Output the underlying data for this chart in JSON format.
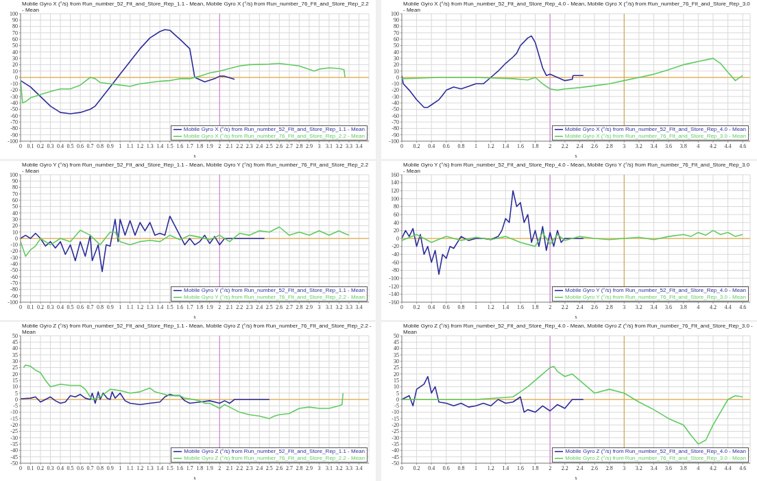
{
  "chart_data": [
    {
      "type": "line",
      "title": "Mobile Gyro X (°/s) from Run_number_52_Fit_and_Store_Rep_1.1 - Mean, Mobile Gyro X (°/s) from Run_number_76_Fit_and_Store_Rep_2.2 - Mean",
      "xlabel": "s",
      "xlim": [
        0,
        3.5
      ],
      "xticks": [
        0,
        0.1,
        0.2,
        0.3,
        0.4,
        0.5,
        0.6,
        0.7,
        0.8,
        0.9,
        1,
        1.1,
        1.2,
        1.3,
        1.4,
        1.5,
        1.6,
        1.7,
        1.8,
        1.9,
        2,
        2.1,
        2.2,
        2.3,
        2.4,
        2.5,
        2.6,
        2.7,
        2.8,
        2.9,
        3,
        3.1,
        3.2,
        3.3,
        3.4
      ],
      "ylim": [
        -100,
        100
      ],
      "yticks": [
        -100,
        -90,
        -80,
        -70,
        -60,
        -50,
        -40,
        -30,
        -20,
        -10,
        0,
        10,
        20,
        30,
        40,
        50,
        60,
        70,
        80,
        90,
        100
      ],
      "grid": true,
      "legend": "bottom right",
      "ref_lines": [
        {
          "axis": "x",
          "value": 2,
          "color": "#d070d0"
        },
        {
          "axis": "y",
          "value": 0,
          "color": "#e8a020"
        }
      ],
      "series": [
        {
          "name": "Mobile Gyro X (°/s) from Run_number_52_Fit_and_Store_Rep_1.1 - Mean",
          "color": "#2a2a9a",
          "x": [
            0,
            0.1,
            0.2,
            0.3,
            0.4,
            0.5,
            0.6,
            0.7,
            0.75,
            0.8,
            0.9,
            1,
            1.1,
            1.2,
            1.3,
            1.4,
            1.45,
            1.5,
            1.6,
            1.7,
            1.75,
            1.85,
            1.95,
            2,
            2.05,
            2.15
          ],
          "values": [
            -5,
            -15,
            -30,
            -45,
            -55,
            -57,
            -55,
            -50,
            -45,
            -35,
            -15,
            5,
            25,
            45,
            62,
            72,
            75,
            74,
            60,
            45,
            0,
            -7,
            -2,
            2,
            2,
            -3
          ]
        },
        {
          "name": "Mobile Gyro X (°/s) from Run_number_76_Fit_and_Store_Rep_2.2 - Mean",
          "color": "#5ecb5e",
          "x": [
            0,
            0.02,
            0.05,
            0.1,
            0.2,
            0.3,
            0.4,
            0.5,
            0.6,
            0.7,
            0.75,
            0.8,
            0.9,
            1,
            1.1,
            1.2,
            1.3,
            1.4,
            1.5,
            1.6,
            1.7,
            1.8,
            1.9,
            2,
            2.2,
            2.3,
            2.5,
            2.6,
            2.8,
            2.95,
            3,
            3.1,
            3.2,
            3.25,
            3.26
          ],
          "values": [
            -5,
            -40,
            -38,
            -32,
            -27,
            -22,
            -18,
            -18,
            -12,
            0,
            -2,
            -8,
            -10,
            -12,
            -14,
            -10,
            -8,
            -6,
            -5,
            -2,
            -2,
            2,
            7,
            10,
            18,
            20,
            21,
            22,
            18,
            10,
            13,
            15,
            14,
            12,
            0
          ]
        }
      ]
    },
    {
      "type": "line",
      "title": "Mobile Gyro X (°/s) from Run_number_52_Fit_and_Store_Rep_4.0 - Mean, Mobile Gyro X (°/s) from Run_number_76_Fit_and_Store_Rep_3.0 - Mean",
      "xlabel": "s",
      "xlim": [
        0,
        4.7
      ],
      "xticks": [
        0,
        0.2,
        0.4,
        0.6,
        0.8,
        1,
        1.2,
        1.4,
        1.6,
        1.8,
        2,
        2.2,
        2.4,
        2.6,
        2.8,
        3,
        3.2,
        3.4,
        3.6,
        3.8,
        4,
        4.2,
        4.4,
        4.6
      ],
      "ylim": [
        -100,
        100
      ],
      "yticks": [
        -100,
        -90,
        -80,
        -70,
        -60,
        -50,
        -40,
        -30,
        -20,
        -10,
        0,
        10,
        20,
        30,
        40,
        50,
        60,
        70,
        80,
        90,
        100
      ],
      "grid": true,
      "legend": "bottom right",
      "ref_lines": [
        {
          "axis": "x",
          "value": 2,
          "color": "#d070d0"
        },
        {
          "axis": "x",
          "value": 3,
          "color": "#d09a30"
        },
        {
          "axis": "y",
          "value": 0,
          "color": "#e8a020"
        }
      ],
      "series": [
        {
          "name": "Mobile Gyro X (°/s) from Run_number_52_Fit_and_Store_Rep_4.0 - Mean",
          "color": "#2a2a9a",
          "x": [
            0,
            0.02,
            0.1,
            0.2,
            0.3,
            0.35,
            0.4,
            0.5,
            0.55,
            0.6,
            0.7,
            0.8,
            0.9,
            1,
            1.1,
            1.2,
            1.3,
            1.4,
            1.5,
            1.55,
            1.6,
            1.7,
            1.75,
            1.8,
            1.85,
            1.9,
            1.95,
            2,
            2.1,
            2.2,
            2.3,
            2.31,
            2.45
          ],
          "values": [
            3,
            -10,
            -20,
            -35,
            -47,
            -47,
            -43,
            -35,
            -28,
            -20,
            -15,
            -18,
            -14,
            -10,
            -10,
            0,
            10,
            22,
            32,
            38,
            50,
            62,
            65,
            55,
            35,
            15,
            3,
            5,
            0,
            -5,
            -3,
            3,
            3
          ]
        },
        {
          "name": "Mobile Gyro X (°/s) from Run_number_76_Fit_and_Store_Rep_3.0 - Mean",
          "color": "#5ecb5e",
          "x": [
            0,
            0.5,
            1,
            1.5,
            1.7,
            1.8,
            1.9,
            2,
            2.1,
            2.2,
            2.4,
            2.6,
            2.8,
            3,
            3.2,
            3.4,
            3.6,
            3.8,
            4,
            4.2,
            4.3,
            4.4,
            4.5,
            4.6
          ],
          "values": [
            -2,
            0,
            0,
            -2,
            -4,
            0,
            -10,
            -18,
            -20,
            -18,
            -16,
            -13,
            -10,
            -5,
            0,
            5,
            12,
            20,
            25,
            30,
            22,
            8,
            -5,
            3
          ]
        }
      ]
    },
    {
      "type": "line",
      "title": "Mobile Gyro Y (°/s) from Run_number_52_Fit_and_Store_Rep_1.1 - Mean, Mobile Gyro Y (°/s) from Run_number_76_Fit_and_Store_Rep_2.2 - Mean",
      "xlabel": "s",
      "xlim": [
        0,
        3.5
      ],
      "xticks": [
        0,
        0.1,
        0.2,
        0.3,
        0.4,
        0.5,
        0.6,
        0.7,
        0.8,
        0.9,
        1,
        1.1,
        1.2,
        1.3,
        1.4,
        1.5,
        1.6,
        1.7,
        1.8,
        1.9,
        2,
        2.1,
        2.2,
        2.3,
        2.4,
        2.5,
        2.6,
        2.7,
        2.8,
        2.9,
        3,
        3.1,
        3.2,
        3.3,
        3.4
      ],
      "ylim": [
        -100,
        100
      ],
      "yticks": [
        -100,
        -90,
        -80,
        -70,
        -60,
        -50,
        -40,
        -30,
        -20,
        -10,
        0,
        10,
        20,
        30,
        40,
        50,
        60,
        70,
        80,
        90,
        100
      ],
      "grid": true,
      "legend": "bottom right",
      "ref_lines": [
        {
          "axis": "x",
          "value": 2,
          "color": "#d070d0"
        },
        {
          "axis": "y",
          "value": 0,
          "color": "#e8a020"
        }
      ],
      "series": [
        {
          "name": "Mobile Gyro Y (°/s) from Run_number_52_Fit_and_Store_Rep_1.1 - Mean",
          "color": "#2a2a9a",
          "x": [
            0,
            0.05,
            0.1,
            0.15,
            0.2,
            0.25,
            0.3,
            0.35,
            0.4,
            0.45,
            0.5,
            0.55,
            0.6,
            0.65,
            0.7,
            0.72,
            0.78,
            0.82,
            0.86,
            0.9,
            0.95,
            0.98,
            1,
            1.05,
            1.1,
            1.15,
            1.2,
            1.25,
            1.3,
            1.35,
            1.4,
            1.45,
            1.5,
            1.55,
            1.6,
            1.65,
            1.7,
            1.75,
            1.8,
            1.85,
            1.9,
            1.95,
            2,
            2.05,
            2.1,
            2.45
          ],
          "values": [
            0,
            5,
            0,
            8,
            0,
            -12,
            -5,
            -15,
            -5,
            -25,
            -10,
            -35,
            -5,
            -28,
            5,
            -35,
            -10,
            -52,
            -10,
            -12,
            30,
            -5,
            30,
            5,
            28,
            5,
            25,
            12,
            25,
            5,
            8,
            5,
            35,
            20,
            5,
            -10,
            0,
            -10,
            -5,
            5,
            -8,
            3,
            -10,
            0,
            0,
            0
          ]
        },
        {
          "name": "Mobile Gyro Y (°/s) from Run_number_76_Fit_and_Store_Rep_2.2 - Mean",
          "color": "#5ecb5e",
          "x": [
            0,
            0.05,
            0.1,
            0.15,
            0.2,
            0.3,
            0.4,
            0.5,
            0.6,
            0.7,
            0.8,
            0.9,
            0.95,
            1,
            1.1,
            1.2,
            1.3,
            1.4,
            1.5,
            1.6,
            1.7,
            1.8,
            1.9,
            2,
            2.1,
            2.2,
            2.3,
            2.4,
            2.5,
            2.6,
            2.7,
            2.8,
            2.9,
            3,
            3.1,
            3.2,
            3.25,
            3.3
          ],
          "values": [
            -5,
            -28,
            -18,
            -12,
            0,
            -10,
            0,
            -5,
            13,
            5,
            -10,
            10,
            10,
            -5,
            -10,
            -5,
            -3,
            -5,
            5,
            -2,
            5,
            2,
            -2,
            5,
            -5,
            8,
            5,
            12,
            10,
            18,
            5,
            10,
            5,
            12,
            5,
            12,
            8,
            5
          ]
        }
      ]
    },
    {
      "type": "line",
      "title": "Mobile Gyro Y (°/s) from Run_number_52_Fit_and_Store_Rep_4.0 - Mean, Mobile Gyro Y (°/s) from Run_number_76_Fit_and_Store_Rep_3.0 - Mean",
      "xlabel": "s",
      "xlim": [
        0,
        4.7
      ],
      "xticks": [
        0,
        0.2,
        0.4,
        0.6,
        0.8,
        1,
        1.2,
        1.4,
        1.6,
        1.8,
        2,
        2.2,
        2.4,
        2.6,
        2.8,
        3,
        3.2,
        3.4,
        3.6,
        3.8,
        4,
        4.2,
        4.4,
        4.6
      ],
      "ylim": [
        -160,
        160
      ],
      "yticks": [
        -160,
        -140,
        -120,
        -100,
        -80,
        -60,
        -40,
        -20,
        0,
        20,
        40,
        60,
        80,
        100,
        120,
        140,
        160
      ],
      "grid": true,
      "legend": "bottom right",
      "ref_lines": [
        {
          "axis": "x",
          "value": 2,
          "color": "#d070d0"
        },
        {
          "axis": "x",
          "value": 3,
          "color": "#d09a30"
        },
        {
          "axis": "y",
          "value": 0,
          "color": "#e8a020"
        }
      ],
      "series": [
        {
          "name": "Mobile Gyro Y (°/s) from Run_number_52_Fit_and_Store_Rep_4.0 - Mean",
          "color": "#2a2a9a",
          "x": [
            0,
            0.05,
            0.1,
            0.15,
            0.2,
            0.25,
            0.3,
            0.35,
            0.4,
            0.45,
            0.5,
            0.55,
            0.6,
            0.65,
            0.7,
            0.8,
            0.9,
            1,
            1.1,
            1.2,
            1.3,
            1.35,
            1.4,
            1.45,
            1.5,
            1.55,
            1.6,
            1.65,
            1.7,
            1.75,
            1.8,
            1.85,
            1.9,
            1.95,
            2,
            2.05,
            2.1,
            2.15,
            2.2,
            2.45
          ],
          "values": [
            0,
            20,
            5,
            25,
            -20,
            10,
            -40,
            -20,
            -60,
            -30,
            -90,
            -40,
            -50,
            -20,
            -25,
            5,
            -5,
            0,
            0,
            -3,
            5,
            20,
            50,
            40,
            120,
            80,
            90,
            40,
            60,
            -10,
            20,
            -20,
            30,
            -30,
            15,
            -20,
            20,
            -10,
            0,
            0
          ]
        },
        {
          "name": "Mobile Gyro Y (°/s) from Run_number_76_Fit_and_Store_Rep_3.0 - Mean",
          "color": "#5ecb5e",
          "x": [
            0,
            0.2,
            0.4,
            0.6,
            0.8,
            1,
            1.2,
            1.4,
            1.6,
            1.8,
            1.9,
            2,
            2.1,
            2.2,
            2.4,
            2.6,
            2.8,
            3,
            3.2,
            3.4,
            3.6,
            3.8,
            3.9,
            4,
            4.1,
            4.2,
            4.3,
            4.4,
            4.5,
            4.6
          ],
          "values": [
            -5,
            10,
            -10,
            5,
            -5,
            3,
            -3,
            5,
            -10,
            -20,
            15,
            -15,
            10,
            -5,
            5,
            0,
            -3,
            0,
            3,
            -3,
            5,
            10,
            5,
            15,
            8,
            20,
            10,
            15,
            5,
            10
          ]
        }
      ]
    },
    {
      "type": "line",
      "title": "Mobile Gyro Z (°/s) from Run_number_52_Fit_and_Store_Rep_1.1 - Mean, Mobile Gyro Z (°/s) from Run_number_76_Fit_and_Store_Rep_2.2 - Mean",
      "xlabel": "s",
      "xlim": [
        0,
        3.5
      ],
      "xticks": [
        0,
        0.1,
        0.2,
        0.3,
        0.4,
        0.5,
        0.6,
        0.7,
        0.8,
        0.9,
        1,
        1.1,
        1.2,
        1.3,
        1.4,
        1.5,
        1.6,
        1.7,
        1.8,
        1.9,
        2,
        2.1,
        2.2,
        2.3,
        2.4,
        2.5,
        2.6,
        2.7,
        2.8,
        2.9,
        3,
        3.1,
        3.2,
        3.3,
        3.4
      ],
      "ylim": [
        -50,
        50
      ],
      "yticks": [
        -50,
        -45,
        -40,
        -35,
        -30,
        -25,
        -20,
        -15,
        -10,
        -5,
        0,
        5,
        10,
        15,
        20,
        25,
        30,
        35,
        40,
        45,
        50
      ],
      "grid": true,
      "legend": "bottom right",
      "ref_lines": [
        {
          "axis": "x",
          "value": 2,
          "color": "#d070d0"
        },
        {
          "axis": "y",
          "value": 0,
          "color": "#e8a020"
        }
      ],
      "series": [
        {
          "name": "Mobile Gyro Z (°/s) from Run_number_52_Fit_and_Store_Rep_1.1 - Mean",
          "color": "#2a2a9a",
          "x": [
            0,
            0.1,
            0.15,
            0.2,
            0.25,
            0.3,
            0.35,
            0.4,
            0.45,
            0.5,
            0.55,
            0.6,
            0.65,
            0.7,
            0.72,
            0.75,
            0.78,
            0.8,
            0.83,
            0.87,
            0.9,
            0.92,
            0.95,
            1,
            1.05,
            1.1,
            1.2,
            1.3,
            1.4,
            1.45,
            1.5,
            1.55,
            1.6,
            1.65,
            1.7,
            1.8,
            1.9,
            2,
            2.05,
            2.1,
            2.15,
            2.5
          ],
          "values": [
            0.5,
            1,
            2,
            -2,
            0,
            2,
            -1,
            -3,
            -2,
            3,
            2,
            4,
            1,
            0,
            5,
            -3,
            6,
            0,
            5,
            1,
            0,
            6,
            1,
            5,
            -1,
            -3,
            -4,
            -3,
            -2,
            2,
            4,
            3,
            3,
            -1,
            -3,
            -2,
            -1,
            -3,
            -1,
            -3,
            0,
            0
          ]
        },
        {
          "name": "Mobile Gyro Z (°/s) from Run_number_76_Fit_and_Store_Rep_2.2 - Mean",
          "color": "#5ecb5e",
          "x": [
            0.03,
            0.05,
            0.1,
            0.15,
            0.2,
            0.25,
            0.3,
            0.4,
            0.5,
            0.6,
            0.65,
            0.7,
            0.72,
            0.8,
            0.9,
            1,
            1.1,
            1.2,
            1.3,
            1.35,
            1.4,
            1.5,
            1.6,
            1.65,
            1.7,
            1.8,
            1.85,
            1.9,
            2,
            2.05,
            2.1,
            2.2,
            2.3,
            2.4,
            2.5,
            2.55,
            2.6,
            2.7,
            2.8,
            2.9,
            3,
            3.1,
            3.2,
            3.23,
            3.24
          ],
          "values": [
            25,
            27,
            26,
            23,
            21,
            15,
            10,
            12,
            11,
            11,
            8,
            2,
            0,
            2,
            8,
            7,
            5,
            6,
            9,
            6,
            5,
            3,
            3,
            1,
            0.5,
            -1,
            -3,
            -3,
            -7,
            -4,
            -6,
            -10,
            -12,
            -13,
            -15,
            -13,
            -12,
            -11,
            -7,
            -6,
            -7,
            -7,
            -5,
            -4,
            5
          ]
        }
      ]
    },
    {
      "type": "line",
      "title": "Mobile Gyro Z (°/s) from Run_number_52_Fit_and_Store_Rep_4.0 - Mean, Mobile Gyro Z (°/s) from Run_number_76_Fit_and_Store_Rep_3.0 - Mean",
      "xlabel": "s",
      "xlim": [
        0,
        4.7
      ],
      "xticks": [
        0,
        0.2,
        0.4,
        0.6,
        0.8,
        1,
        1.2,
        1.4,
        1.6,
        1.8,
        2,
        2.2,
        2.4,
        2.6,
        2.8,
        3,
        3.2,
        3.4,
        3.6,
        3.8,
        4,
        4.2,
        4.4,
        4.6
      ],
      "ylim": [
        -50,
        50
      ],
      "yticks": [
        -50,
        -45,
        -40,
        -35,
        -30,
        -25,
        -20,
        -15,
        -10,
        -5,
        0,
        5,
        10,
        15,
        20,
        25,
        30,
        35,
        40,
        45,
        50
      ],
      "grid": true,
      "legend": "bottom right",
      "ref_lines": [
        {
          "axis": "x",
          "value": 2,
          "color": "#d070d0"
        },
        {
          "axis": "x",
          "value": 3,
          "color": "#d09a30"
        },
        {
          "axis": "y",
          "value": 0,
          "color": "#e8a020"
        }
      ],
      "series": [
        {
          "name": "Mobile Gyro Z (°/s) from Run_number_52_Fit_and_Store_Rep_4.0 - Mean",
          "color": "#2a2a9a",
          "x": [
            0,
            0.1,
            0.15,
            0.2,
            0.3,
            0.35,
            0.4,
            0.45,
            0.5,
            0.6,
            0.7,
            0.8,
            0.9,
            1,
            1.1,
            1.2,
            1.3,
            1.4,
            1.5,
            1.6,
            1.65,
            1.7,
            1.8,
            1.9,
            2,
            2.1,
            2.2,
            2.3,
            2.45
          ],
          "values": [
            0,
            3,
            -5,
            8,
            12,
            18,
            5,
            10,
            -2,
            -3,
            -5,
            -3,
            -6,
            -5,
            -3,
            -5,
            0,
            -3,
            -2,
            2,
            -10,
            -8,
            -10,
            -5,
            -9,
            -4,
            -7,
            0,
            0
          ]
        },
        {
          "name": "Mobile Gyro Z (°/s) from Run_number_76_Fit_and_Store_Rep_3.0 - Mean",
          "color": "#5ecb5e",
          "x": [
            0,
            0.5,
            1,
            1.5,
            1.7,
            1.8,
            1.9,
            2,
            2.05,
            2.1,
            2.2,
            2.3,
            2.4,
            2.6,
            2.8,
            3,
            3.2,
            3.4,
            3.6,
            3.8,
            3.9,
            4,
            4.1,
            4.2,
            4.3,
            4.4,
            4.5,
            4.6
          ],
          "values": [
            0,
            0,
            0,
            2,
            10,
            15,
            20,
            25,
            26,
            22,
            18,
            20,
            15,
            5,
            8,
            5,
            -2,
            -8,
            -15,
            -20,
            -28,
            -35,
            -32,
            -20,
            -10,
            0,
            3,
            2
          ]
        }
      ]
    }
  ]
}
